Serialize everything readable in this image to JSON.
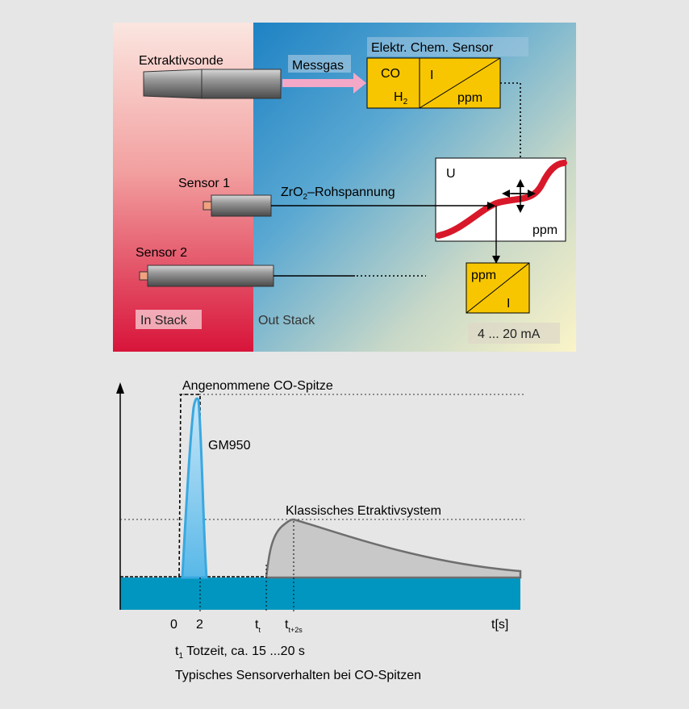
{
  "top_diagram": {
    "probe_label": "Extraktivsonde",
    "messgas_label": "Messgas",
    "sensor_title": "Elektr. Chem. Sensor",
    "co_label": "CO",
    "h2_label": "H",
    "h2_sub": "2",
    "i_label": "I",
    "ppm_label": "ppm",
    "sensor1_label": "Sensor 1",
    "sensor2_label": "Sensor 2",
    "zro2_prefix": "ZrO",
    "zro2_sub": "2",
    "zro2_suffix": "–Rohspannung",
    "u_label": "U",
    "curve_ppm_label": "ppm",
    "conv_ppm_label": "ppm",
    "conv_i_label": "I",
    "in_stack_label": "In Stack",
    "out_stack_label": "Out Stack",
    "output_label": "4 ... 20 mA"
  },
  "bottom_chart": {
    "peak_label": "Angenommene CO-Spitze",
    "gm950_label": "GM950",
    "classic_label": "Klassisches Etraktivsystem",
    "tick_0": "0",
    "tick_2": "2",
    "tick_t1": "t",
    "tick_t1_sub": "t",
    "tick_t2": "t",
    "tick_t2_sub": "t+2s",
    "x_axis_label": "t[s]",
    "note_prefix": "t",
    "note_sub": "1",
    "note_text": " Totzeit, ca. 15 ...20 s",
    "caption": "Typisches Sensorverhalten bei CO-Spitzen"
  },
  "colors": {
    "background": "#e6e6e6",
    "sensor_yellow": "#f7c600",
    "blue_fill": "#0096c0",
    "red_curve": "#d8182a",
    "gm950_blue": "#3aa8e0"
  }
}
